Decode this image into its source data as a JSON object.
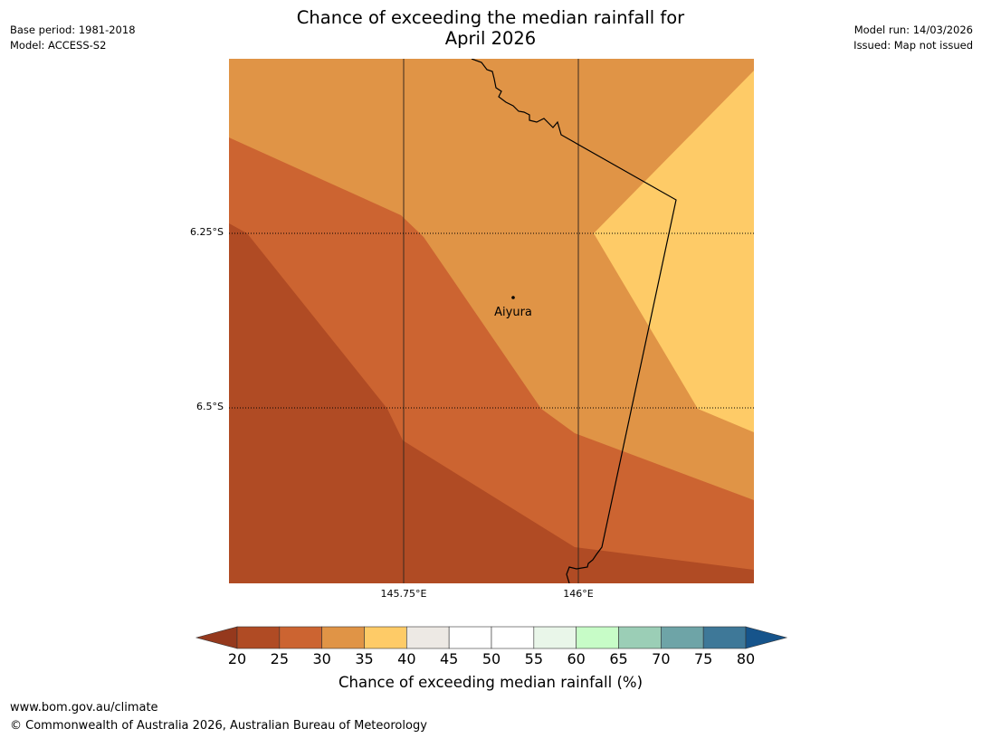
{
  "title": {
    "line1": "Chance of exceeding the median rainfall for",
    "line2": "April 2026"
  },
  "meta_left": {
    "base_period": "Base period: 1981-2018",
    "model": "Model: ACCESS-S2"
  },
  "meta_right": {
    "model_run": "Model run: 14/03/2026",
    "issued": "Issued: Map not issued"
  },
  "map": {
    "lat_labels": [
      "6.25°S",
      "6.5°S"
    ],
    "lon_labels": [
      "145.75°E",
      "146°E"
    ],
    "town": {
      "name": "Aiyura"
    },
    "colors": {
      "band_20_25": "#b04b24",
      "band_25_30": "#cc6431",
      "band_30_35": "#e09446",
      "band_35_40": "#fecb67",
      "border": "#000000"
    }
  },
  "colorbar": {
    "label": "Chance of exceeding median rainfall (%)",
    "ticks": [
      "20",
      "25",
      "30",
      "35",
      "40",
      "45",
      "50",
      "55",
      "60",
      "65",
      "70",
      "75",
      "80"
    ],
    "under_color": "#95391d",
    "over_color": "#16548b",
    "segment_colors": [
      "#b04b24",
      "#cc6431",
      "#e09446",
      "#fecb67",
      "#ede9e4",
      "#ffffff",
      "#ffffff",
      "#e9f6e9",
      "#c7fcc7",
      "#9bceb6",
      "#6ea4a7",
      "#3e7898"
    ]
  },
  "footer": {
    "url": "www.bom.gov.au/climate",
    "copyright": "© Commonwealth of Australia 2026, Australian Bureau of Meteorology"
  }
}
